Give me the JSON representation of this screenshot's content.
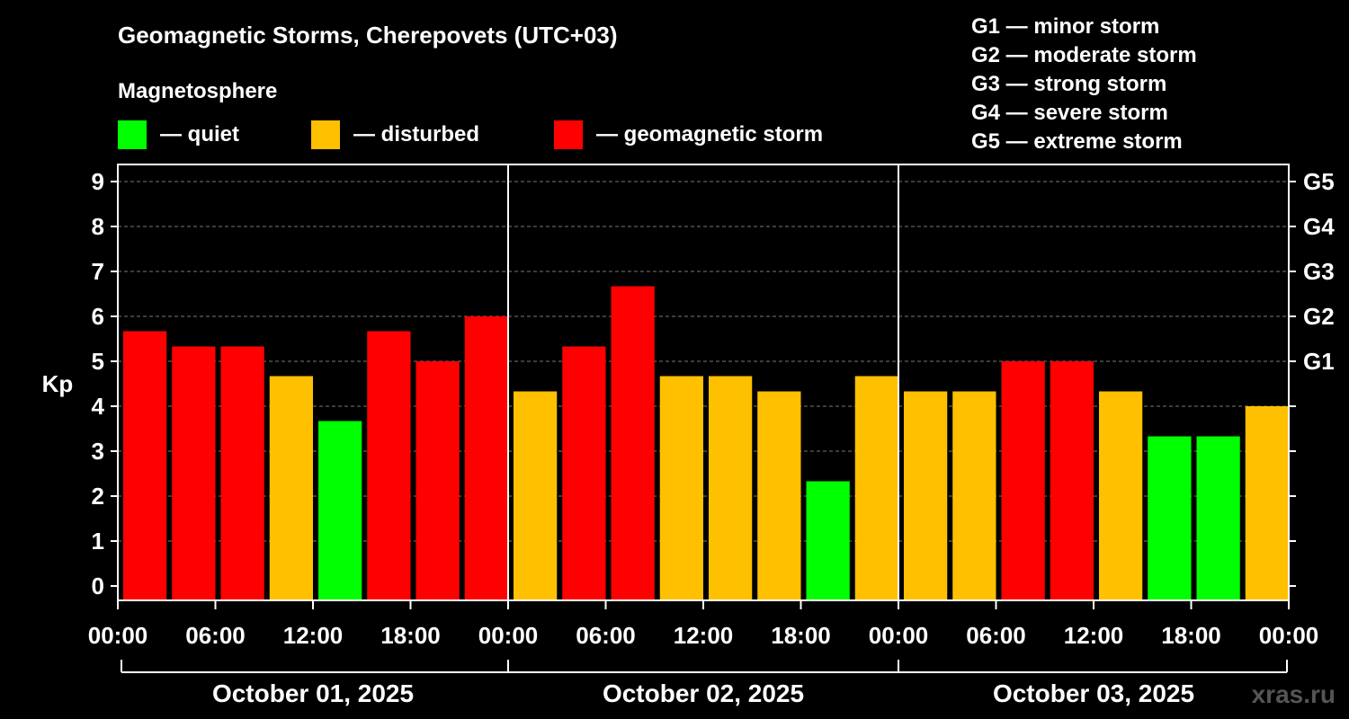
{
  "chart_data": {
    "type": "bar",
    "title": "Geomagnetic Storms, Cherepovets (UTC+03)",
    "legend_title": "Magnetosphere",
    "legend": [
      {
        "key": "quiet",
        "label": "— quiet",
        "color": "#00ff00"
      },
      {
        "key": "disturbed",
        "label": "— disturbed",
        "color": "#ffc000"
      },
      {
        "key": "storm",
        "label": "— geomagnetic storm",
        "color": "#ff0000"
      }
    ],
    "storm_scale": [
      "G1 — minor storm",
      "G2 — moderate storm",
      "G3 — strong storm",
      "G4 — severe storm",
      "G5 — extreme storm"
    ],
    "ylabel": "Kp",
    "ylim": [
      0,
      9
    ],
    "y_ticks": [
      "0",
      "1",
      "2",
      "3",
      "4",
      "5",
      "6",
      "7",
      "8",
      "9"
    ],
    "right_axis": [
      {
        "kp": 5,
        "label": "G1"
      },
      {
        "kp": 6,
        "label": "G2"
      },
      {
        "kp": 7,
        "label": "G3"
      },
      {
        "kp": 8,
        "label": "G4"
      },
      {
        "kp": 9,
        "label": "G5"
      }
    ],
    "x_ticks": [
      "00:00",
      "06:00",
      "12:00",
      "18:00",
      "00:00",
      "06:00",
      "12:00",
      "18:00",
      "00:00",
      "06:00",
      "12:00",
      "18:00",
      "00:00"
    ],
    "days": [
      "October 01, 2025",
      "October 02, 2025",
      "October 03, 2025"
    ],
    "values": [
      5.67,
      5.33,
      5.33,
      4.67,
      3.67,
      5.67,
      5.0,
      6.0,
      4.33,
      5.33,
      6.67,
      4.67,
      4.67,
      4.33,
      2.33,
      4.67,
      4.33,
      4.33,
      5.0,
      5.0,
      4.33,
      3.33,
      3.33,
      4.0
    ],
    "levels": [
      "storm",
      "storm",
      "storm",
      "disturbed",
      "quiet",
      "storm",
      "storm",
      "storm",
      "disturbed",
      "storm",
      "storm",
      "disturbed",
      "disturbed",
      "disturbed",
      "quiet",
      "disturbed",
      "disturbed",
      "disturbed",
      "storm",
      "storm",
      "disturbed",
      "quiet",
      "quiet",
      "disturbed"
    ],
    "grid": true
  },
  "watermark": "xras.ru"
}
